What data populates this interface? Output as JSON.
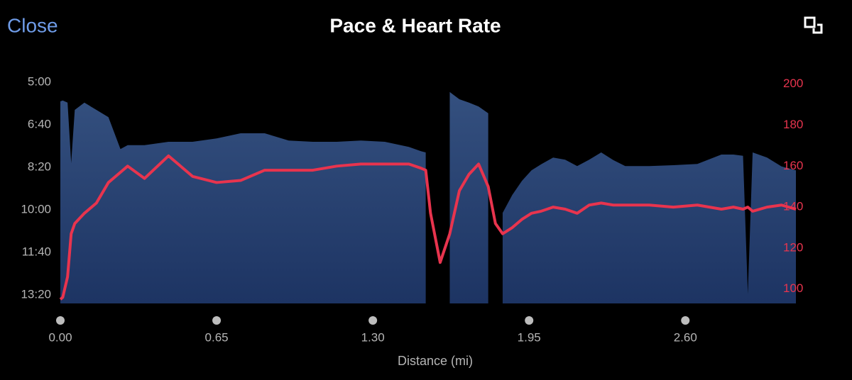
{
  "header": {
    "close": "Close"
  },
  "chart_data": {
    "type": "area-line",
    "title": "Pace & Heart Rate",
    "x_label": "Distance (mi)",
    "x": [
      0,
      0.01,
      0.03,
      0.045,
      0.06,
      0.1,
      0.15,
      0.2,
      0.25,
      0.28,
      0.35,
      0.45,
      0.55,
      0.65,
      0.75,
      0.85,
      0.95,
      1.05,
      1.15,
      1.25,
      1.35,
      1.45,
      1.5,
      1.52,
      1.54,
      1.58,
      1.62,
      1.66,
      1.7,
      1.74,
      1.78,
      1.81,
      1.84,
      1.88,
      1.92,
      1.96,
      2,
      2.05,
      2.1,
      2.15,
      2.2,
      2.25,
      2.3,
      2.35,
      2.45,
      2.55,
      2.65,
      2.75,
      2.8,
      2.84,
      2.86,
      2.88,
      2.94,
      3,
      3.06
    ],
    "xlim": [
      0,
      3.06
    ],
    "xticks": [
      {
        "value": 0,
        "label": "0.00"
      },
      {
        "value": 0.65,
        "label": "0.65"
      },
      {
        "value": 1.3,
        "label": "1.30"
      },
      {
        "value": 1.95,
        "label": "1.95"
      },
      {
        "value": 2.6,
        "label": "2.60"
      }
    ],
    "ylim": [
      820,
      290
    ],
    "yticks": [
      {
        "value": 300,
        "label": "5:00"
      },
      {
        "value": 400,
        "label": "6:40"
      },
      {
        "value": 500,
        "label": "8:20"
      },
      {
        "value": 600,
        "label": "10:00"
      },
      {
        "value": 700,
        "label": "11:40"
      },
      {
        "value": 800,
        "label": "13:20"
      }
    ],
    "y2lim": [
      93,
      203
    ],
    "y2ticks": [
      100,
      120,
      140,
      160,
      180,
      200
    ],
    "series": [
      {
        "type": "area",
        "color": "#34507f",
        "values": [
          345,
          343,
          348,
          490,
          365,
          348,
          365,
          382,
          457,
          448,
          448,
          440,
          440,
          432,
          420,
          420,
          437,
          440,
          440,
          437,
          440,
          452,
          462,
          465,
          null,
          null,
          323,
          340,
          348,
          357,
          373,
          null,
          607,
          565,
          532,
          507,
          493,
          477,
          482,
          497,
          482,
          465,
          483,
          497,
          497,
          495,
          492,
          470,
          470,
          473,
          798,
          465,
          477,
          498,
          507
        ]
      },
      {
        "type": "line",
        "axis": "y2",
        "color": "#e8344e",
        "values": [
          95,
          96,
          106,
          127,
          132,
          137,
          142,
          152,
          157,
          160,
          154,
          165,
          155,
          152,
          153,
          158,
          158,
          158,
          160,
          161,
          161,
          161,
          159,
          158,
          137,
          113,
          127,
          148,
          156,
          161,
          150,
          132,
          127,
          130,
          134,
          137,
          138,
          140,
          139,
          137,
          141,
          142,
          141,
          141,
          141,
          140,
          141,
          139,
          140,
          139,
          140,
          138,
          140,
          141,
          139
        ]
      }
    ]
  }
}
